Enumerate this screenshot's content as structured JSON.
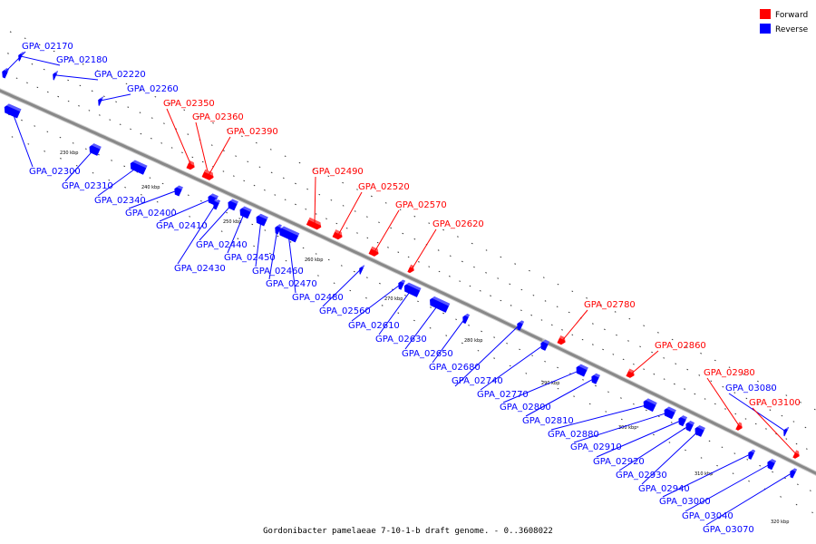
{
  "caption": "Gordonibacter pamelaeae 7-10-1-b draft genome. - 0..3608022",
  "legend": [
    {
      "label": "Forward",
      "color": "#ff0000"
    },
    {
      "label": "Reverse",
      "color": "#0000ff"
    }
  ],
  "colors": {
    "forward": "#ff0000",
    "reverse": "#0000ff",
    "backbone": "#888888"
  },
  "ticks": [
    "230 kbp",
    "240 kbp",
    "250 kbp",
    "260 kbp",
    "270 kbp",
    "280 kbp",
    "290 kbp",
    "300 kbp",
    "310 kbp",
    "320 kbp"
  ],
  "genes": [
    {
      "id": "GPA_02170",
      "strand": "reverse"
    },
    {
      "id": "GPA_02180",
      "strand": "reverse"
    },
    {
      "id": "GPA_02220",
      "strand": "reverse"
    },
    {
      "id": "GPA_02260",
      "strand": "reverse"
    },
    {
      "id": "GPA_02350",
      "strand": "forward"
    },
    {
      "id": "GPA_02360",
      "strand": "forward"
    },
    {
      "id": "GPA_02390",
      "strand": "forward"
    },
    {
      "id": "GPA_02490",
      "strand": "forward"
    },
    {
      "id": "GPA_02520",
      "strand": "forward"
    },
    {
      "id": "GPA_02570",
      "strand": "forward"
    },
    {
      "id": "GPA_02620",
      "strand": "forward"
    },
    {
      "id": "GPA_02780",
      "strand": "forward"
    },
    {
      "id": "GPA_02860",
      "strand": "forward"
    },
    {
      "id": "GPA_02980",
      "strand": "forward"
    },
    {
      "id": "GPA_03080",
      "strand": "reverse"
    },
    {
      "id": "GPA_03100",
      "strand": "forward"
    },
    {
      "id": "GPA_02300",
      "strand": "reverse"
    },
    {
      "id": "GPA_02310",
      "strand": "reverse"
    },
    {
      "id": "GPA_02340",
      "strand": "reverse"
    },
    {
      "id": "GPA_02400",
      "strand": "reverse"
    },
    {
      "id": "GPA_02410",
      "strand": "reverse"
    },
    {
      "id": "GPA_02440",
      "strand": "reverse"
    },
    {
      "id": "GPA_02430",
      "strand": "reverse"
    },
    {
      "id": "GPA_02450",
      "strand": "reverse"
    },
    {
      "id": "GPA_02460",
      "strand": "reverse"
    },
    {
      "id": "GPA_02470",
      "strand": "reverse"
    },
    {
      "id": "GPA_02480",
      "strand": "reverse"
    },
    {
      "id": "GPA_02560",
      "strand": "reverse"
    },
    {
      "id": "GPA_02610",
      "strand": "reverse"
    },
    {
      "id": "GPA_02630",
      "strand": "reverse"
    },
    {
      "id": "GPA_02650",
      "strand": "reverse"
    },
    {
      "id": "GPA_02680",
      "strand": "reverse"
    },
    {
      "id": "GPA_02740",
      "strand": "reverse"
    },
    {
      "id": "GPA_02770",
      "strand": "reverse"
    },
    {
      "id": "GPA_02800",
      "strand": "reverse"
    },
    {
      "id": "GPA_02810",
      "strand": "reverse"
    },
    {
      "id": "GPA_02880",
      "strand": "reverse"
    },
    {
      "id": "GPA_02910",
      "strand": "reverse"
    },
    {
      "id": "GPA_02920",
      "strand": "reverse"
    },
    {
      "id": "GPA_02930",
      "strand": "reverse"
    },
    {
      "id": "GPA_02940",
      "strand": "reverse"
    },
    {
      "id": "GPA_03000",
      "strand": "reverse"
    },
    {
      "id": "GPA_03040",
      "strand": "reverse"
    },
    {
      "id": "GPA_03070",
      "strand": "reverse"
    }
  ]
}
